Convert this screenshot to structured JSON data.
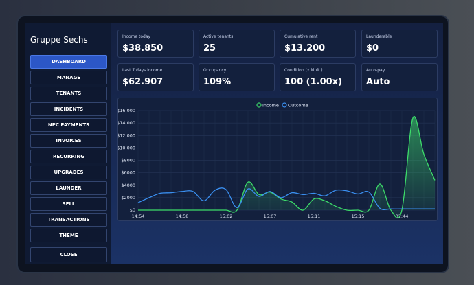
{
  "sidebar": {
    "title": "Gruppe Sechs",
    "menu": [
      "DASHBOARD",
      "MANAGE",
      "TENANTS",
      "INCIDENTS",
      "NPC PAYMENTS",
      "INVOICES",
      "RECURRING",
      "UPGRADES",
      "LAUNDER",
      "SELL",
      "TRANSACTIONS",
      "THEME"
    ],
    "active": "DASHBOARD",
    "close": "CLOSE"
  },
  "cards": [
    {
      "label": "Income today",
      "value": "$38.850"
    },
    {
      "label": "Active tenants",
      "value": "25"
    },
    {
      "label": "Cumulative rent",
      "value": "$13.200"
    },
    {
      "label": "Launderable",
      "value": "$0"
    },
    {
      "label": "Last 7 days income",
      "value": "$62.907"
    },
    {
      "label": "Occupancy",
      "value": "109%"
    },
    {
      "label": "Condition (x Mult.)",
      "value": "100 (1.00x)"
    },
    {
      "label": "Auto-pay",
      "value": "Auto"
    }
  ],
  "chart_data": {
    "type": "line",
    "categories": [
      "14:54",
      null,
      null,
      null,
      "14:58",
      null,
      null,
      null,
      "15:02",
      null,
      null,
      null,
      "15:07",
      null,
      null,
      null,
      "15:11",
      null,
      null,
      null,
      "15:15",
      null,
      null,
      null,
      "02:44",
      null,
      null,
      null
    ],
    "series": [
      {
        "name": "Income",
        "color": "#3ddc6a",
        "values": [
          0,
          0,
          0,
          0,
          0,
          0,
          0,
          0,
          0,
          0,
          4500,
          2500,
          2900,
          1800,
          1300,
          0,
          1800,
          1500,
          600,
          0,
          0,
          0,
          4200,
          0,
          0,
          14800,
          9000,
          4800
        ]
      },
      {
        "name": "Outcome",
        "color": "#3a8ff0",
        "values": [
          1200,
          2000,
          2700,
          2800,
          3000,
          3000,
          1500,
          3200,
          3300,
          400,
          3400,
          2200,
          3000,
          2000,
          2800,
          2500,
          2700,
          2300,
          3200,
          3100,
          2600,
          2900,
          300,
          200,
          200,
          200,
          200,
          200
        ]
      }
    ],
    "ylim": [
      0,
      16000
    ],
    "yticks": [
      {
        "value": 0,
        "label": "$0"
      },
      {
        "value": 2000,
        "label": "$2000"
      },
      {
        "value": 4000,
        "label": "$4000"
      },
      {
        "value": 6000,
        "label": "$6000"
      },
      {
        "value": 8000,
        "label": "$8000"
      },
      {
        "value": 10000,
        "label": "$10.000"
      },
      {
        "value": 12000,
        "label": "$12.000"
      },
      {
        "value": 14000,
        "label": "$14.000"
      },
      {
        "value": 16000,
        "label": "$16.000"
      }
    ],
    "grid": true,
    "legend": "top"
  }
}
